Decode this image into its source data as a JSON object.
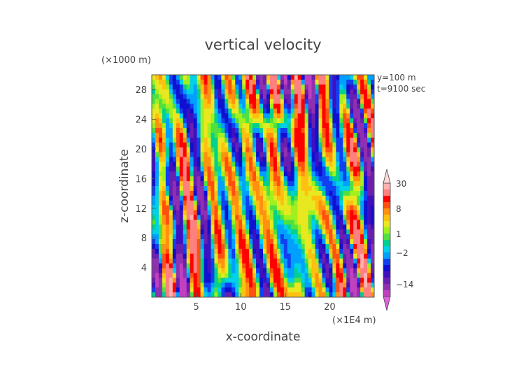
{
  "chart_data": {
    "type": "heatmap",
    "title": "vertical velocity",
    "xlabel": "x-coordinate",
    "ylabel": "z-coordinate",
    "x_unit": "(×1E4 m)",
    "y_unit": "(×1000 m)",
    "annotations": [
      "y=100 m",
      "t=9100 sec"
    ],
    "xlim": [
      0,
      25
    ],
    "ylim": [
      0,
      30
    ],
    "x_ticks": [
      5,
      10,
      15,
      20
    ],
    "y_ticks": [
      4,
      8,
      12,
      16,
      20,
      24,
      28
    ],
    "colorbar": {
      "labels": [
        "30",
        "8",
        "1",
        "−2",
        "−14"
      ],
      "label_values": [
        30,
        8,
        1,
        -2,
        -14
      ],
      "levels": [
        -30,
        -20,
        -14,
        -10,
        -8,
        -6,
        -4,
        -2,
        -1,
        0,
        1,
        2,
        4,
        6,
        8,
        10,
        14,
        20,
        30
      ],
      "colors": [
        "#e060e0",
        "#c040c0",
        "#9030b0",
        "#6a1fb0",
        "#4010c0",
        "#1010d0",
        "#1040f0",
        "#00a0ff",
        "#00d0e8",
        "#00d090",
        "#50e040",
        "#a0f020",
        "#e8e820",
        "#ffc010",
        "#ff9010",
        "#ff5010",
        "#ff0000",
        "#ff8080",
        "#ffb0b0",
        "#ffd8d8"
      ],
      "extend": "both"
    },
    "grid": false
  }
}
